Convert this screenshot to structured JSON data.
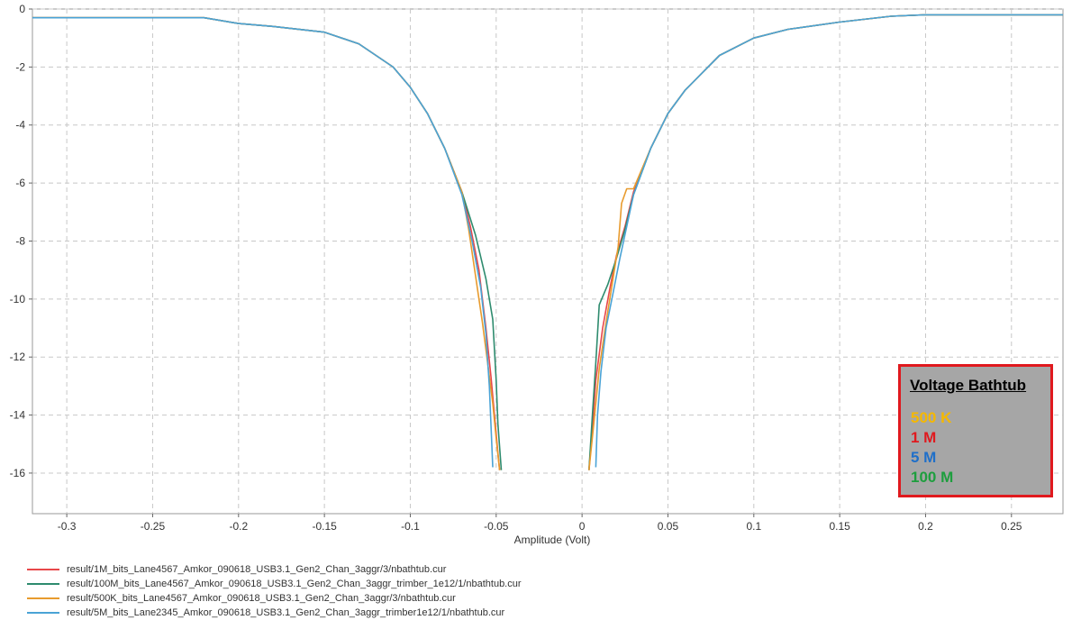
{
  "chart_data": {
    "type": "line",
    "title": "",
    "xlabel": "Amplitude (Volt)",
    "ylabel": "",
    "xlim": [
      -0.32,
      0.28
    ],
    "ylim": [
      -17.4,
      0
    ],
    "x_ticks": [
      -0.3,
      -0.25,
      -0.2,
      -0.15,
      -0.1,
      -0.05,
      0,
      0.05,
      0.1,
      0.15,
      0.2,
      0.25
    ],
    "x_tick_labels": [
      "-0.3",
      "-0.25",
      "-0.2",
      "-0.15",
      "-0.1",
      "-0.05",
      "0",
      "0.05",
      "0.1",
      "0.15",
      "0.2",
      "0.25"
    ],
    "y_ticks": [
      0,
      -2,
      -4,
      -6,
      -8,
      -10,
      -12,
      -14,
      -16
    ],
    "y_tick_labels": [
      "0",
      "-2",
      "-4",
      "-6",
      "-8",
      "-10",
      "-12",
      "-14",
      "-16"
    ],
    "grid": true,
    "legend_position": "bottom",
    "series": [
      {
        "name": "result/1M_bits_Lane4567_Amkor_090618_USB3.1_Gen2_Chan_3aggr/3/nbathtub.cur",
        "color": "#e8474a",
        "left": [
          [
            -0.32,
            -0.3
          ],
          [
            -0.22,
            -0.3
          ],
          [
            -0.2,
            -0.5
          ],
          [
            -0.18,
            -0.6
          ],
          [
            -0.15,
            -0.8
          ],
          [
            -0.13,
            -1.2
          ],
          [
            -0.11,
            -2
          ],
          [
            -0.1,
            -2.7
          ],
          [
            -0.09,
            -3.6
          ],
          [
            -0.08,
            -4.8
          ],
          [
            -0.07,
            -6.3
          ],
          [
            -0.065,
            -7.5
          ],
          [
            -0.06,
            -9.0
          ],
          [
            -0.056,
            -11.0
          ],
          [
            -0.053,
            -12.7
          ],
          [
            -0.051,
            -14.0
          ],
          [
            -0.049,
            -15.3
          ],
          [
            -0.048,
            -15.9
          ]
        ],
        "right": [
          [
            0.004,
            -15.9
          ],
          [
            0.006,
            -14.5
          ],
          [
            0.008,
            -12.8
          ],
          [
            0.012,
            -11.0
          ],
          [
            0.016,
            -9.7
          ],
          [
            0.02,
            -8.5
          ],
          [
            0.025,
            -7.5
          ],
          [
            0.03,
            -6.3
          ],
          [
            0.04,
            -4.8
          ],
          [
            0.05,
            -3.6
          ],
          [
            0.06,
            -2.8
          ],
          [
            0.07,
            -2.2
          ],
          [
            0.08,
            -1.6
          ],
          [
            0.1,
            -1.0
          ],
          [
            0.12,
            -0.7
          ],
          [
            0.15,
            -0.45
          ],
          [
            0.18,
            -0.25
          ],
          [
            0.2,
            -0.2
          ],
          [
            0.28,
            -0.2
          ]
        ]
      },
      {
        "name": "result/100M_bits_Lane4567_Amkor_090618_USB3.1_Gen2_Chan_3aggr_trimber_1e12/1/nbathtub.cur",
        "color": "#2e8b6e",
        "left": [
          [
            -0.32,
            -0.3
          ],
          [
            -0.22,
            -0.3
          ],
          [
            -0.2,
            -0.5
          ],
          [
            -0.18,
            -0.6
          ],
          [
            -0.15,
            -0.8
          ],
          [
            -0.13,
            -1.2
          ],
          [
            -0.11,
            -2
          ],
          [
            -0.1,
            -2.7
          ],
          [
            -0.09,
            -3.6
          ],
          [
            -0.08,
            -4.8
          ],
          [
            -0.07,
            -6.3
          ],
          [
            -0.062,
            -7.8
          ],
          [
            -0.056,
            -9.3
          ],
          [
            -0.052,
            -10.7
          ],
          [
            -0.05,
            -12.8
          ],
          [
            -0.049,
            -14.3
          ],
          [
            -0.047,
            -15.9
          ]
        ],
        "right": [
          [
            0.004,
            -15.9
          ],
          [
            0.006,
            -14.0
          ],
          [
            0.008,
            -12.2
          ],
          [
            0.01,
            -10.2
          ],
          [
            0.015,
            -9.5
          ],
          [
            0.02,
            -8.6
          ],
          [
            0.025,
            -7.6
          ],
          [
            0.03,
            -6.4
          ],
          [
            0.04,
            -4.8
          ],
          [
            0.05,
            -3.6
          ],
          [
            0.06,
            -2.8
          ],
          [
            0.07,
            -2.2
          ],
          [
            0.08,
            -1.6
          ],
          [
            0.1,
            -1.0
          ],
          [
            0.12,
            -0.7
          ],
          [
            0.15,
            -0.45
          ],
          [
            0.18,
            -0.25
          ],
          [
            0.2,
            -0.2
          ],
          [
            0.28,
            -0.2
          ]
        ]
      },
      {
        "name": "result/500K_bits_Lane4567_Amkor_090618_USB3.1_Gen2_Chan_3aggr/3/nbathtub.cur",
        "color": "#e89b2e",
        "left": [
          [
            -0.32,
            -0.3
          ],
          [
            -0.22,
            -0.3
          ],
          [
            -0.2,
            -0.5
          ],
          [
            -0.18,
            -0.6
          ],
          [
            -0.15,
            -0.8
          ],
          [
            -0.13,
            -1.2
          ],
          [
            -0.11,
            -2
          ],
          [
            -0.1,
            -2.7
          ],
          [
            -0.09,
            -3.6
          ],
          [
            -0.08,
            -4.8
          ],
          [
            -0.07,
            -6.3
          ],
          [
            -0.066,
            -7.6
          ],
          [
            -0.062,
            -9.2
          ],
          [
            -0.058,
            -10.8
          ],
          [
            -0.055,
            -12.2
          ],
          [
            -0.052,
            -13.6
          ],
          [
            -0.05,
            -14.8
          ],
          [
            -0.048,
            -15.9
          ]
        ],
        "right": [
          [
            0.004,
            -15.9
          ],
          [
            0.007,
            -14.2
          ],
          [
            0.01,
            -12.4
          ],
          [
            0.014,
            -10.8
          ],
          [
            0.018,
            -9.3
          ],
          [
            0.021,
            -8.2
          ],
          [
            0.023,
            -6.7
          ],
          [
            0.026,
            -6.2
          ],
          [
            0.03,
            -6.2
          ],
          [
            0.04,
            -4.8
          ],
          [
            0.05,
            -3.6
          ],
          [
            0.06,
            -2.8
          ],
          [
            0.07,
            -2.2
          ],
          [
            0.08,
            -1.6
          ],
          [
            0.1,
            -1.0
          ],
          [
            0.12,
            -0.7
          ],
          [
            0.15,
            -0.45
          ],
          [
            0.18,
            -0.25
          ],
          [
            0.2,
            -0.2
          ],
          [
            0.28,
            -0.2
          ]
        ]
      },
      {
        "name": "result/5M_bits_Lane2345_Amkor_090618_USB3.1_Gen2_Chan_3aggr_trimber1e12/1/nbathtub.cur",
        "color": "#4aa3d6",
        "left": [
          [
            -0.32,
            -0.3
          ],
          [
            -0.22,
            -0.3
          ],
          [
            -0.2,
            -0.5
          ],
          [
            -0.18,
            -0.6
          ],
          [
            -0.15,
            -0.8
          ],
          [
            -0.13,
            -1.2
          ],
          [
            -0.11,
            -2
          ],
          [
            -0.1,
            -2.7
          ],
          [
            -0.09,
            -3.6
          ],
          [
            -0.08,
            -4.8
          ],
          [
            -0.07,
            -6.4
          ],
          [
            -0.064,
            -8.0
          ],
          [
            -0.059,
            -9.6
          ],
          [
            -0.056,
            -11.2
          ],
          [
            -0.054,
            -13.0
          ],
          [
            -0.053,
            -14.4
          ],
          [
            -0.052,
            -15.8
          ]
        ],
        "right": [
          [
            0.008,
            -15.8
          ],
          [
            0.009,
            -14.0
          ],
          [
            0.011,
            -12.5
          ],
          [
            0.014,
            -11.0
          ],
          [
            0.018,
            -9.8
          ],
          [
            0.022,
            -8.6
          ],
          [
            0.026,
            -7.5
          ],
          [
            0.03,
            -6.4
          ],
          [
            0.04,
            -4.8
          ],
          [
            0.05,
            -3.6
          ],
          [
            0.06,
            -2.8
          ],
          [
            0.07,
            -2.2
          ],
          [
            0.08,
            -1.6
          ],
          [
            0.1,
            -1.0
          ],
          [
            0.12,
            -0.7
          ],
          [
            0.15,
            -0.45
          ],
          [
            0.18,
            -0.25
          ],
          [
            0.2,
            -0.2
          ],
          [
            0.28,
            -0.2
          ]
        ]
      }
    ]
  },
  "legend": {
    "items": [
      {
        "label": "result/1M_bits_Lane4567_Amkor_090618_USB3.1_Gen2_Chan_3aggr/3/nbathtub.cur",
        "color": "#e8474a"
      },
      {
        "label": "result/100M_bits_Lane4567_Amkor_090618_USB3.1_Gen2_Chan_3aggr_trimber_1e12/1/nbathtub.cur",
        "color": "#2e8b6e"
      },
      {
        "label": "result/500K_bits_Lane4567_Amkor_090618_USB3.1_Gen2_Chan_3aggr/3/nbathtub.cur",
        "color": "#e89b2e"
      },
      {
        "label": "result/5M_bits_Lane2345_Amkor_090618_USB3.1_Gen2_Chan_3aggr_trimber1e12/1/nbathtub.cur",
        "color": "#4aa3d6"
      }
    ]
  },
  "callout": {
    "title": "Voltage Bathtub",
    "items": [
      {
        "label": "500 K",
        "color": "#f5b800"
      },
      {
        "label": "1 M",
        "color": "#e0191e"
      },
      {
        "label": "5 M",
        "color": "#1f6fc9"
      },
      {
        "label": "100 M",
        "color": "#1e9e3e"
      }
    ]
  }
}
